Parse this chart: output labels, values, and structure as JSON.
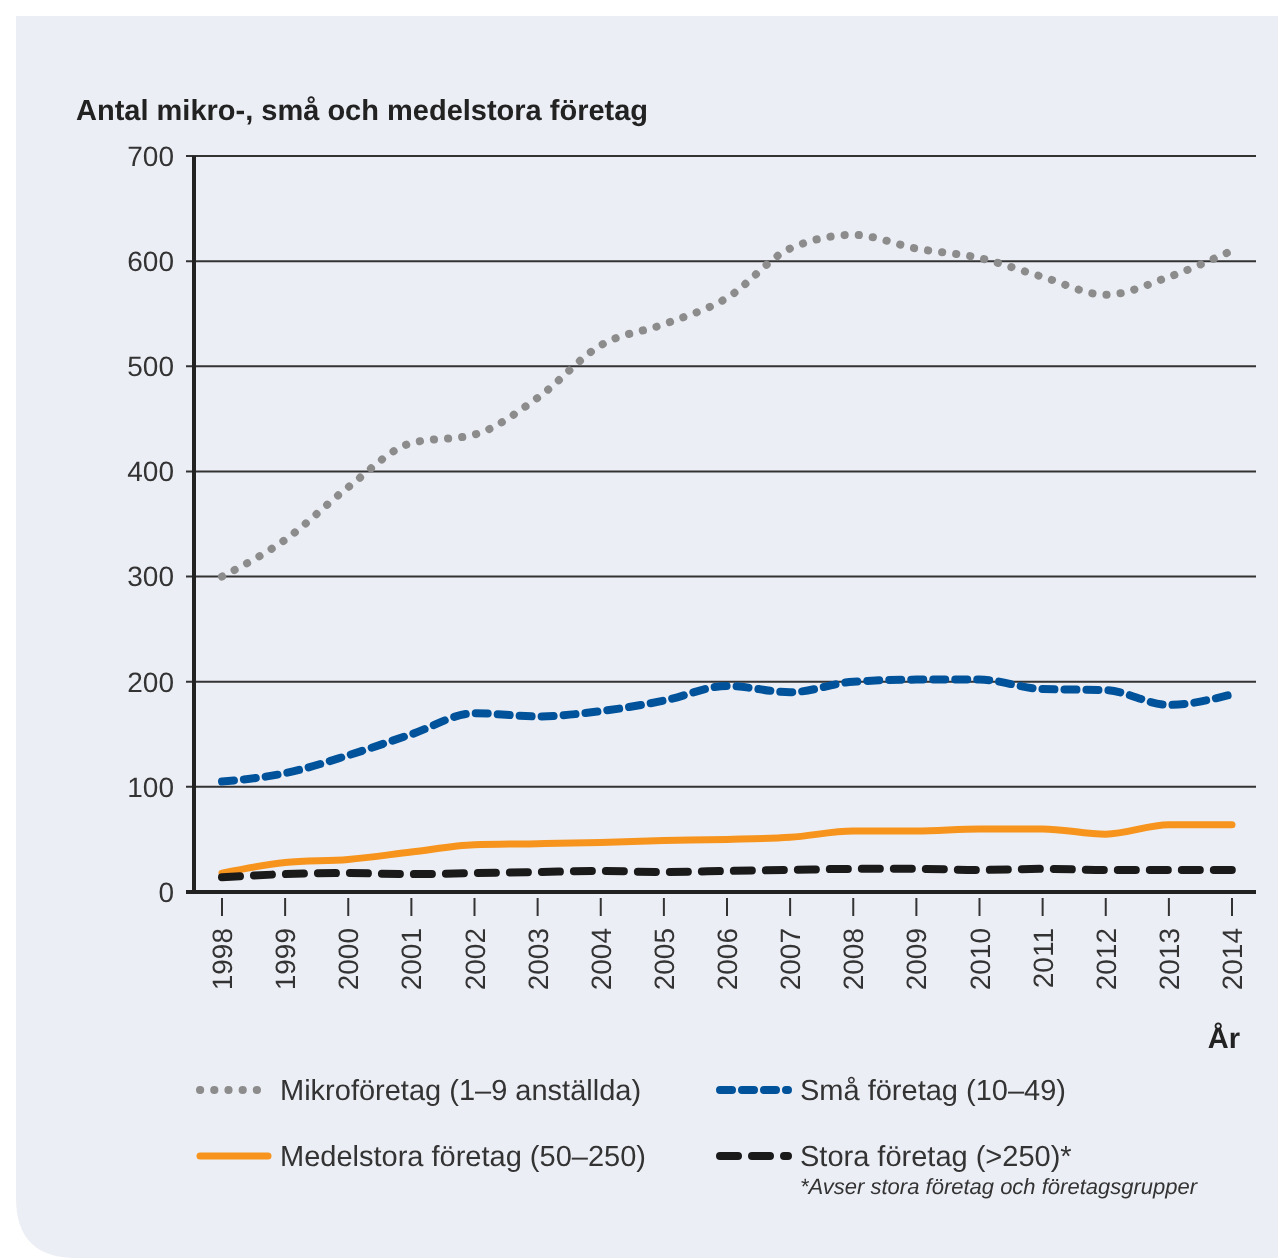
{
  "chart_data": {
    "type": "line",
    "ylabel": "Antal mikro-, små och medelstora företag",
    "xlabel": "År",
    "categories": [
      "1998",
      "1999",
      "2000",
      "2001",
      "2002",
      "2003",
      "2004",
      "2005",
      "2006",
      "2007",
      "2008",
      "2009",
      "2010",
      "2011",
      "2012",
      "2013",
      "2014"
    ],
    "ylim": [
      0,
      700
    ],
    "yticks": [
      0,
      100,
      200,
      300,
      400,
      500,
      600,
      700
    ],
    "grid": "y",
    "legend": "bottom",
    "marker": "none",
    "series": [
      {
        "name": "Mikroföretag (1–9 anställda)",
        "color": "#8c8c8c",
        "line_style": "dotted",
        "values": [
          300,
          335,
          385,
          427,
          435,
          470,
          520,
          540,
          565,
          612,
          625,
          612,
          603,
          585,
          568,
          585,
          610
        ]
      },
      {
        "name": "Medelstora företag (50–250)",
        "color": "#f7941d",
        "line_style": "solid",
        "values": [
          18,
          28,
          31,
          38,
          45,
          46,
          47,
          49,
          50,
          52,
          58,
          58,
          60,
          60,
          55,
          64,
          64
        ]
      },
      {
        "name": "Små företag (10–49)",
        "color": "#00539b",
        "line_style": "dashed",
        "values": [
          105,
          113,
          130,
          150,
          170,
          167,
          172,
          182,
          196,
          190,
          200,
          202,
          202,
          193,
          192,
          178,
          188
        ]
      },
      {
        "name": "Stora företag (>250)*",
        "color": "#1a1a1a",
        "line_style": "dashed",
        "values": [
          14,
          17,
          18,
          17,
          18,
          19,
          20,
          19,
          20,
          21,
          22,
          22,
          21,
          22,
          21,
          21,
          21
        ]
      }
    ],
    "annotations": [
      "*Avser stora företag och företagsgrupper"
    ]
  }
}
